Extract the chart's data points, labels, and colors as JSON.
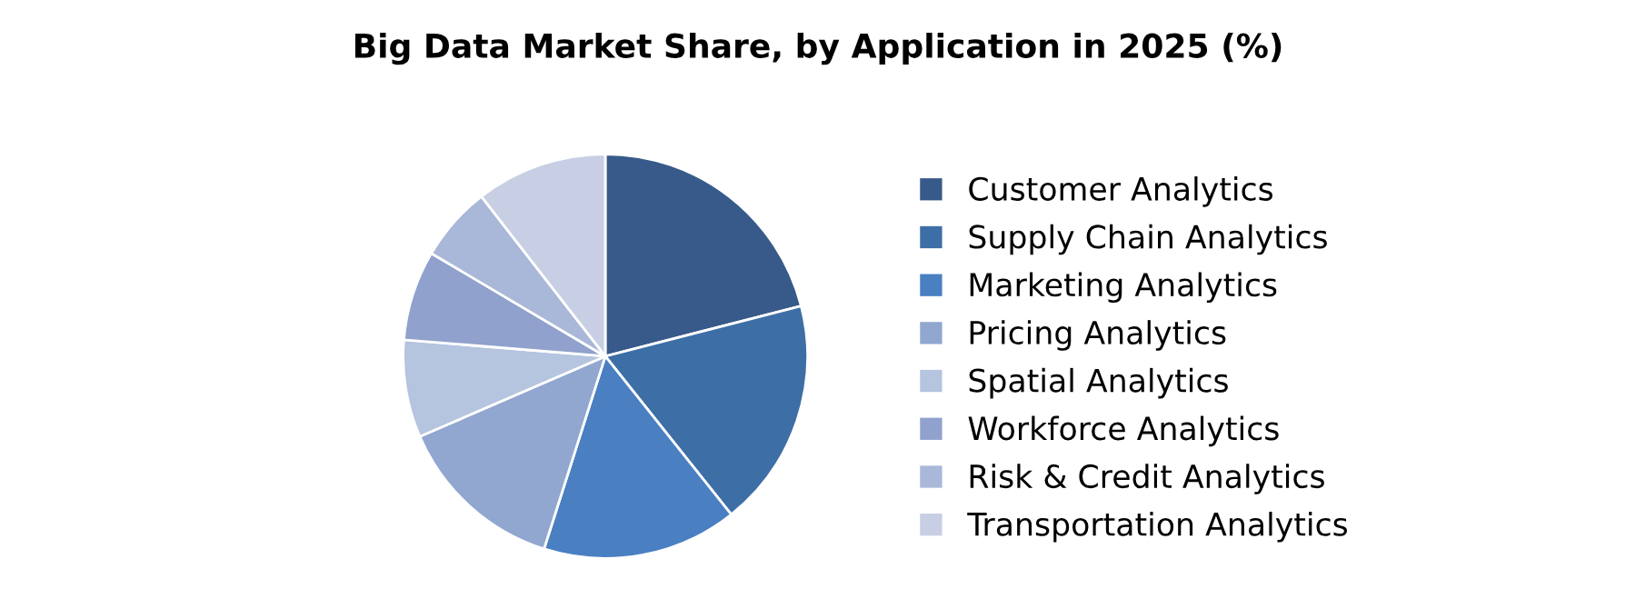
{
  "chart_data": {
    "type": "pie",
    "title": "Big Data Market Share, by Application in 2025 (%)",
    "categories": [
      "Customer Analytics",
      "Supply Chain Analytics",
      "Marketing Analytics",
      "Pricing Analytics",
      "Spatial Analytics",
      "Workforce Analytics",
      "Risk & Credit Analytics",
      "Transportation Analytics"
    ],
    "values": [
      21,
      18.3,
      15.6,
      13.6,
      7.8,
      7.2,
      6,
      10.5
    ],
    "colors": [
      "#375a8a",
      "#3e6ea6",
      "#4a7fc2",
      "#91a7d0",
      "#b5c4df",
      "#8fa1cc",
      "#a9b7d8",
      "#c8cfe4"
    ],
    "legend": "right"
  }
}
